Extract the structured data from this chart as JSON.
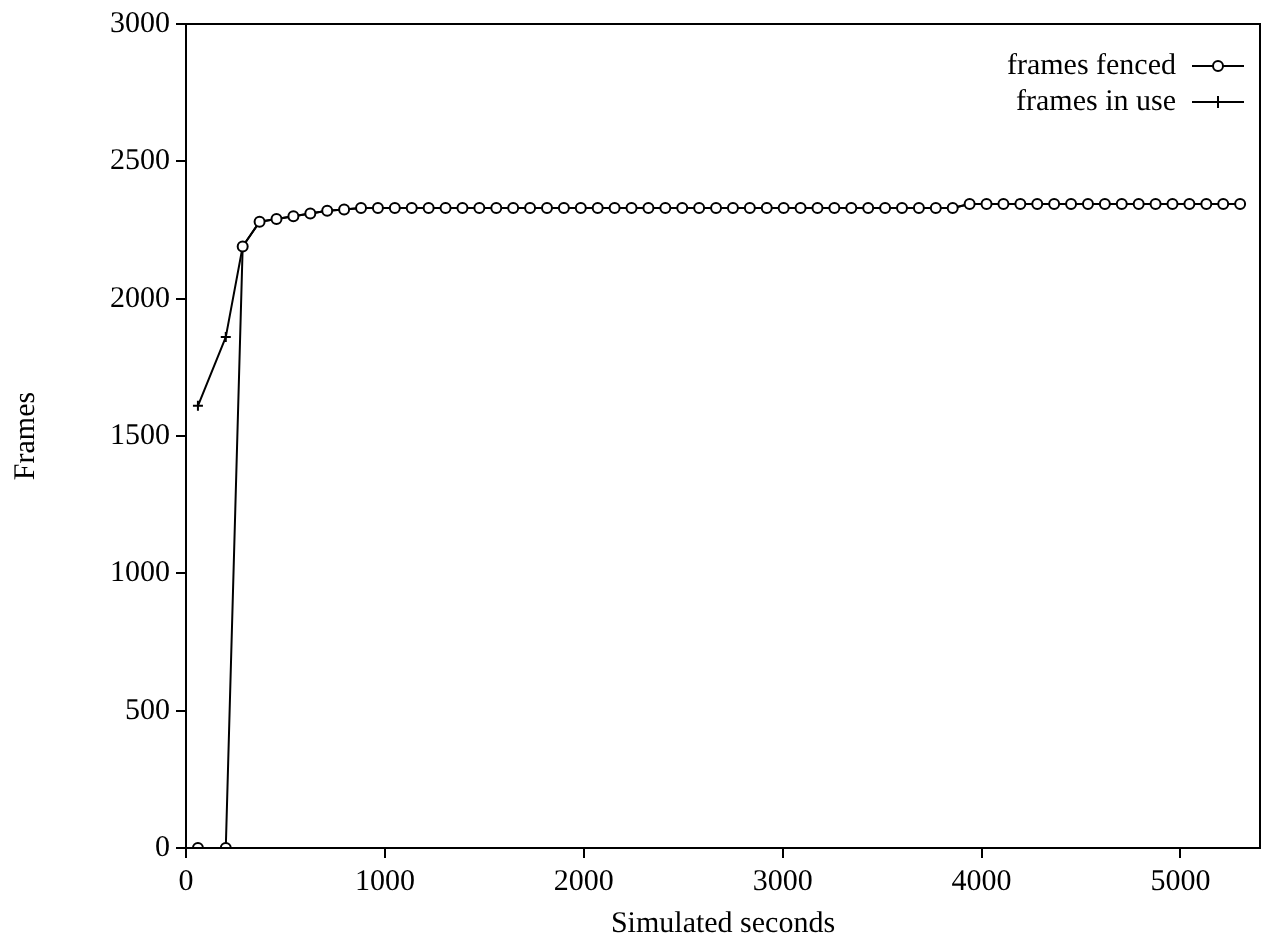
{
  "chart_data": {
    "type": "line",
    "xlabel": "Simulated seconds",
    "ylabel": "Frames",
    "xlim": [
      0,
      5400
    ],
    "xticks": [
      0,
      1000,
      2000,
      3000,
      4000,
      5000
    ],
    "ylim": [
      0,
      3000
    ],
    "yticks": [
      0,
      500,
      1000,
      1500,
      2000,
      2500,
      3000
    ],
    "grid": false,
    "legend": "top right",
    "x": [
      60,
      200,
      285,
      370,
      455,
      540,
      625,
      710,
      795,
      880,
      965,
      1050,
      1135,
      1220,
      1305,
      1390,
      1475,
      1560,
      1645,
      1730,
      1815,
      1900,
      1985,
      2070,
      2155,
      2240,
      2325,
      2410,
      2495,
      2580,
      2665,
      2750,
      2835,
      2920,
      3005,
      3090,
      3175,
      3260,
      3345,
      3430,
      3515,
      3600,
      3685,
      3770,
      3855,
      3940,
      4025,
      4110,
      4195,
      4280,
      4365,
      4450,
      4535,
      4620,
      4705,
      4790,
      4875,
      4960,
      5045,
      5130,
      5215,
      5300
    ],
    "series": [
      {
        "name": "frames fenced",
        "color": "#000000",
        "marker": "circle",
        "values": [
          0,
          0,
          2190,
          2280,
          2290,
          2300,
          2310,
          2320,
          2325,
          2330,
          2330,
          2330,
          2330,
          2330,
          2330,
          2330,
          2330,
          2330,
          2330,
          2330,
          2330,
          2330,
          2330,
          2330,
          2330,
          2330,
          2330,
          2330,
          2330,
          2330,
          2330,
          2330,
          2330,
          2330,
          2330,
          2330,
          2330,
          2330,
          2330,
          2330,
          2330,
          2330,
          2330,
          2330,
          2330,
          2345,
          2345,
          2345,
          2345,
          2345,
          2345,
          2345,
          2345,
          2345,
          2345,
          2345,
          2345,
          2345,
          2345,
          2345,
          2345,
          2345
        ]
      },
      {
        "name": "frames in use",
        "color": "#000000",
        "marker": "cross",
        "values": [
          1610,
          1860,
          2190,
          2280,
          2290,
          2300,
          2310,
          2320,
          2325,
          2330,
          2330,
          2330,
          2330,
          2330,
          2330,
          2330,
          2330,
          2330,
          2330,
          2330,
          2330,
          2330,
          2330,
          2330,
          2330,
          2330,
          2330,
          2330,
          2330,
          2330,
          2330,
          2330,
          2330,
          2330,
          2330,
          2330,
          2330,
          2330,
          2330,
          2330,
          2330,
          2330,
          2330,
          2330,
          2330,
          2345,
          2345,
          2345,
          2345,
          2345,
          2345,
          2345,
          2345,
          2345,
          2345,
          2345,
          2345,
          2345,
          2345,
          2345,
          2345,
          2345
        ]
      }
    ]
  }
}
